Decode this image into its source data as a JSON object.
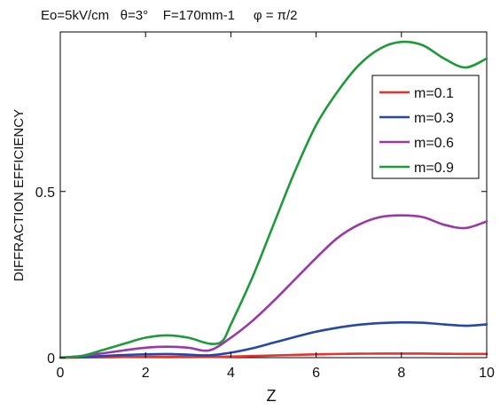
{
  "chart_data": {
    "type": "line",
    "title": "Eo=5kV/cm   θ=3°    F=170mm-1     φ = π/2",
    "xlabel": "Z",
    "ylabel": "DIFFRACTION EFFICIENCY",
    "xlim": [
      0,
      10
    ],
    "ylim": [
      0,
      0.98
    ],
    "x_ticks": [
      0,
      2,
      4,
      6,
      8,
      10
    ],
    "x_tick_labels": [
      "0",
      "2",
      "4",
      "6",
      "8",
      "10"
    ],
    "y_ticks": [
      0,
      0.5
    ],
    "y_tick_labels": [
      "0",
      "0.5"
    ],
    "grid": false,
    "legend_position": "top-right",
    "series": [
      {
        "name": "m=0.1",
        "color": "#e8322c",
        "x": [
          0,
          0.5,
          1,
          1.5,
          2,
          2.5,
          3,
          3.5,
          4,
          4.5,
          5,
          5.5,
          6,
          6.5,
          7,
          7.5,
          8,
          8.5,
          9,
          9.5,
          10
        ],
        "y": [
          0,
          0.0005,
          0.0012,
          0.002,
          0.0027,
          0.003,
          0.0027,
          0.0022,
          0.0032,
          0.0048,
          0.0065,
          0.0082,
          0.0098,
          0.011,
          0.0118,
          0.0122,
          0.0123,
          0.0121,
          0.0116,
          0.0112,
          0.0112
        ]
      },
      {
        "name": "m=0.3",
        "color": "#2547a8",
        "x": [
          0,
          0.5,
          1,
          1.5,
          2,
          2.5,
          3,
          3.5,
          4,
          4.5,
          5,
          5.5,
          6,
          6.5,
          7,
          7.5,
          8,
          8.5,
          9,
          9.5,
          10
        ],
        "y": [
          0,
          0.002,
          0.005,
          0.008,
          0.01,
          0.011,
          0.009,
          0.007,
          0.015,
          0.028,
          0.045,
          0.062,
          0.078,
          0.09,
          0.099,
          0.104,
          0.106,
          0.105,
          0.1,
          0.096,
          0.1
        ]
      },
      {
        "name": "m=0.6",
        "color": "#9b38a8",
        "x": [
          0,
          0.5,
          1,
          1.5,
          2,
          2.5,
          3,
          3.5,
          4,
          4.5,
          5,
          5.5,
          6,
          6.5,
          7,
          7.5,
          8,
          8.5,
          9,
          9.5,
          10
        ],
        "y": [
          0,
          0.005,
          0.013,
          0.022,
          0.03,
          0.033,
          0.03,
          0.022,
          0.06,
          0.11,
          0.17,
          0.235,
          0.3,
          0.36,
          0.4,
          0.423,
          0.428,
          0.423,
          0.4,
          0.39,
          0.41
        ]
      },
      {
        "name": "m=0.9",
        "color": "#1f9a3a",
        "x": [
          0,
          0.5,
          1,
          1.5,
          2,
          2.5,
          3,
          3.5,
          3.8,
          4,
          4.5,
          5,
          5.5,
          6,
          6.5,
          7,
          7.5,
          8,
          8.5,
          9,
          9.5,
          10
        ],
        "y": [
          0,
          0.005,
          0.023,
          0.042,
          0.06,
          0.067,
          0.06,
          0.042,
          0.05,
          0.1,
          0.24,
          0.4,
          0.56,
          0.7,
          0.8,
          0.88,
          0.93,
          0.95,
          0.94,
          0.9,
          0.873,
          0.9
        ]
      }
    ]
  }
}
